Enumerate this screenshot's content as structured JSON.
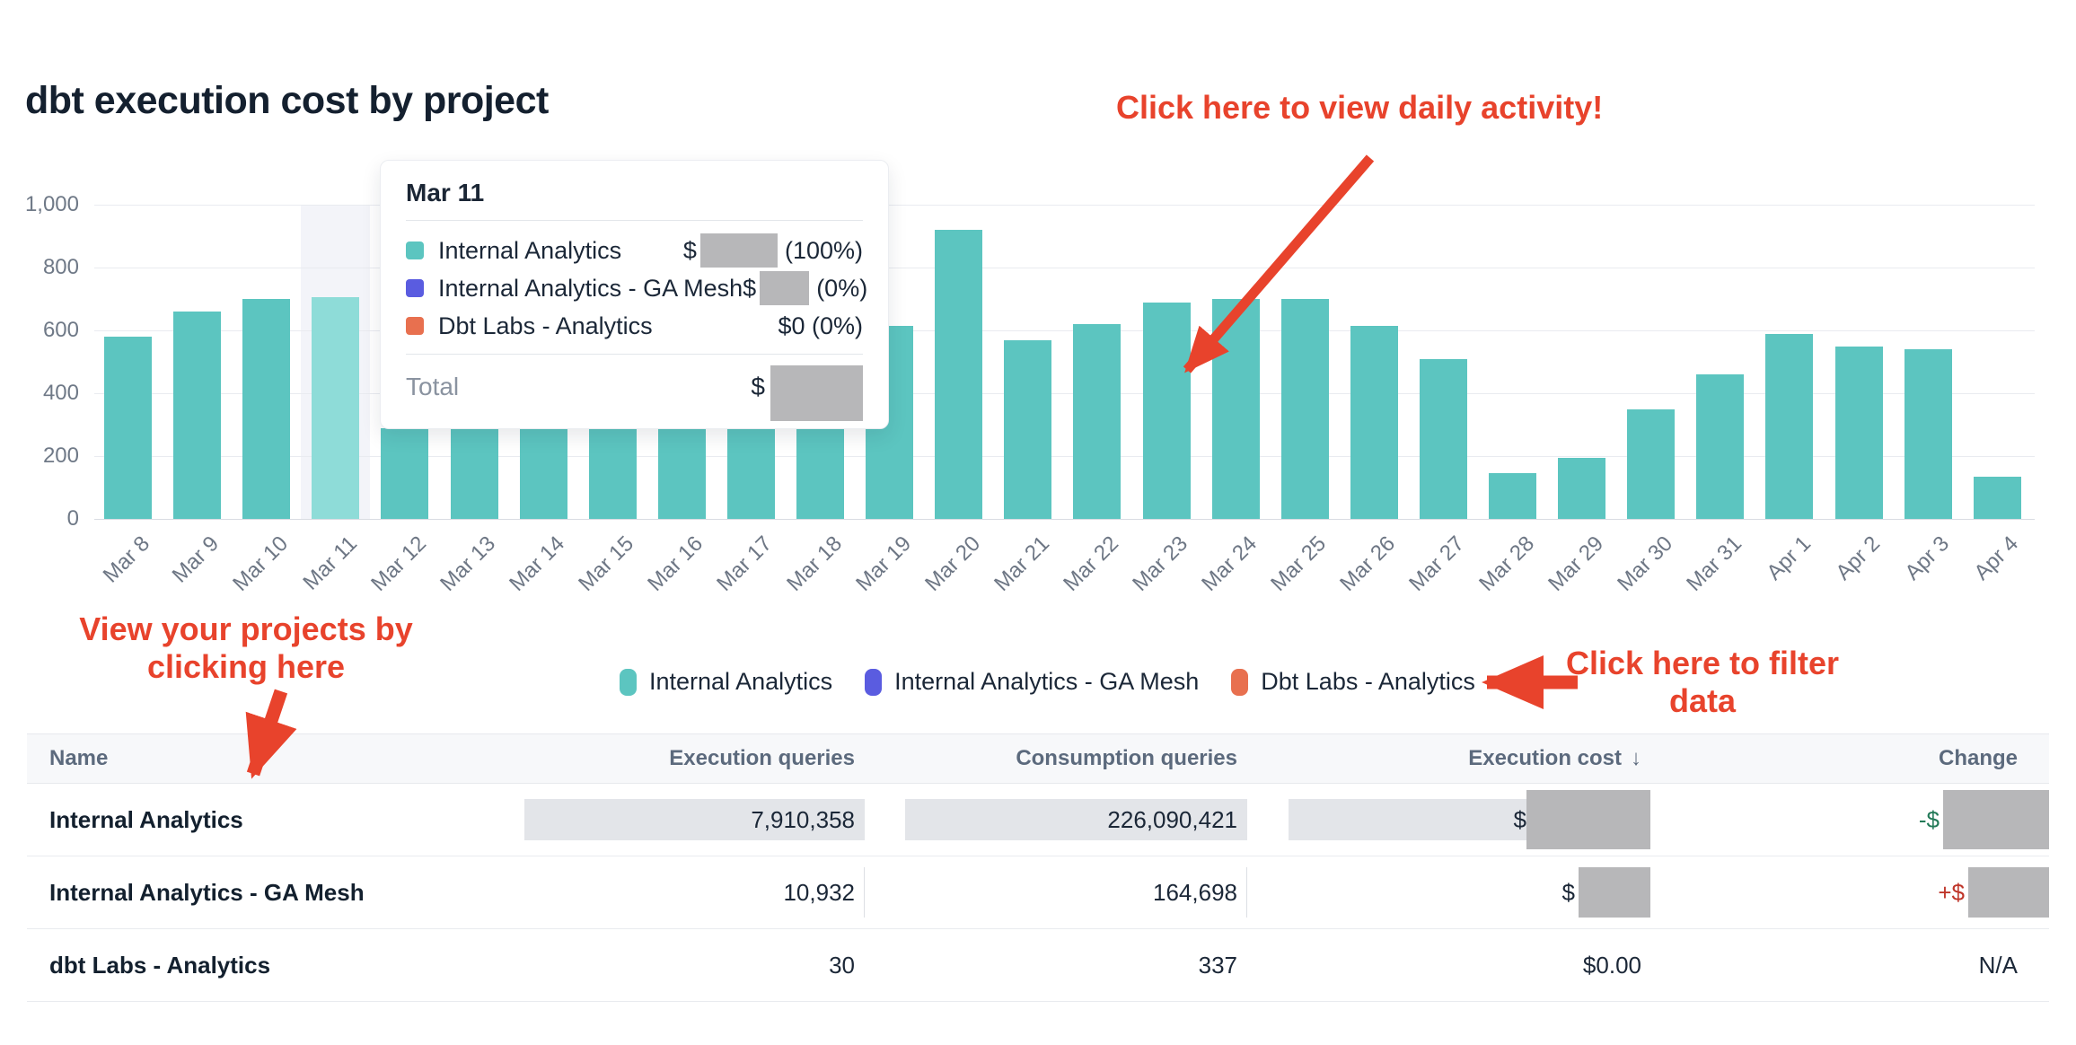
{
  "page": {
    "title": "dbt execution cost by project"
  },
  "chart_data": {
    "type": "bar",
    "stacked": true,
    "title": "dbt execution cost by project",
    "categories": [
      "Mar 8",
      "Mar 9",
      "Mar 10",
      "Mar 11",
      "Mar 12",
      "Mar 13",
      "Mar 14",
      "Mar 15",
      "Mar 16",
      "Mar 17",
      "Mar 18",
      "Mar 19",
      "Mar 20",
      "Mar 21",
      "Mar 22",
      "Mar 23",
      "Mar 24",
      "Mar 25",
      "Mar 26",
      "Mar 27",
      "Mar 28",
      "Mar 29",
      "Mar 30",
      "Mar 31",
      "Apr 1",
      "Apr 2",
      "Apr 3",
      "Apr 4"
    ],
    "series": [
      {
        "name": "Internal Analytics",
        "color": "#5cc5c0",
        "values": [
          580,
          660,
          700,
          705,
          290,
          290,
          290,
          290,
          290,
          290,
          290,
          615,
          920,
          570,
          620,
          690,
          700,
          700,
          615,
          510,
          145,
          195,
          350,
          460,
          590,
          550,
          540,
          135
        ]
      },
      {
        "name": "Internal Analytics - GA Mesh",
        "color": "#5a5ce0",
        "values": [
          0,
          0,
          0,
          0,
          0,
          0,
          0,
          0,
          0,
          0,
          0,
          0,
          0,
          0,
          0,
          0,
          0,
          0,
          0,
          0,
          0,
          0,
          0,
          0,
          0,
          0,
          0,
          0
        ]
      },
      {
        "name": "Dbt Labs - Analytics",
        "color": "#e8704f",
        "values": [
          0,
          0,
          0,
          0,
          0,
          0,
          0,
          0,
          0,
          0,
          0,
          0,
          0,
          0,
          0,
          0,
          0,
          0,
          0,
          0,
          0,
          0,
          0,
          0,
          0,
          0,
          0,
          0
        ]
      }
    ],
    "ylim": [
      0,
      1000
    ],
    "yticks_top_down": [
      "1,000",
      "800",
      "600",
      "400",
      "200",
      "0"
    ],
    "grid": true,
    "legend_position": "bottom",
    "highlighted_category": "Mar 11",
    "highlight_bar_color": "#8edcd8",
    "xlabel": "",
    "ylabel": ""
  },
  "tooltip": {
    "title": "Mar 11",
    "rows": [
      {
        "label": "Internal Analytics",
        "color": "#5cc5c0",
        "value_prefix": "$",
        "pct": "(100%)"
      },
      {
        "label": "Internal Analytics - GA Mesh",
        "color": "#5a5ce0",
        "value_prefix": "$",
        "pct": "(0%)"
      },
      {
        "label": "Dbt Labs - Analytics",
        "color": "#e8704f",
        "value_text": "$0 (0%)"
      }
    ],
    "total_label": "Total",
    "total_prefix": "$"
  },
  "legend": {
    "items": [
      {
        "label": "Internal Analytics",
        "color": "#5cc5c0"
      },
      {
        "label": "Internal Analytics - GA Mesh",
        "color": "#5a5ce0"
      },
      {
        "label": "Dbt Labs - Analytics",
        "color": "#e8704f"
      }
    ]
  },
  "annotations": {
    "color": "#e8432c",
    "daily_activity": "Click here to view daily activity!",
    "view_projects_line1": "View your projects by",
    "view_projects_line2": "clicking here",
    "filter_line1": "Click here to filter",
    "filter_line2": "data"
  },
  "table": {
    "columns": [
      "Name",
      "Execution queries",
      "Consumption queries",
      "Execution cost",
      "Change"
    ],
    "sort_column": "Execution cost",
    "sort_icon": "↓",
    "rows": [
      {
        "name": "Internal Analytics",
        "execution_queries": "7,910,358",
        "consumption_queries": "226,090,421",
        "execution_cost_prefix": "$",
        "change_prefix": "-$",
        "highlighted": true
      },
      {
        "name": "Internal Analytics - GA Mesh",
        "execution_queries": "10,932",
        "consumption_queries": "164,698",
        "execution_cost_prefix": "$",
        "change_prefix": "+$"
      },
      {
        "name": "dbt Labs - Analytics",
        "execution_queries": "30",
        "consumption_queries": "337",
        "execution_cost": "$0.00",
        "change": "N/A"
      }
    ]
  }
}
